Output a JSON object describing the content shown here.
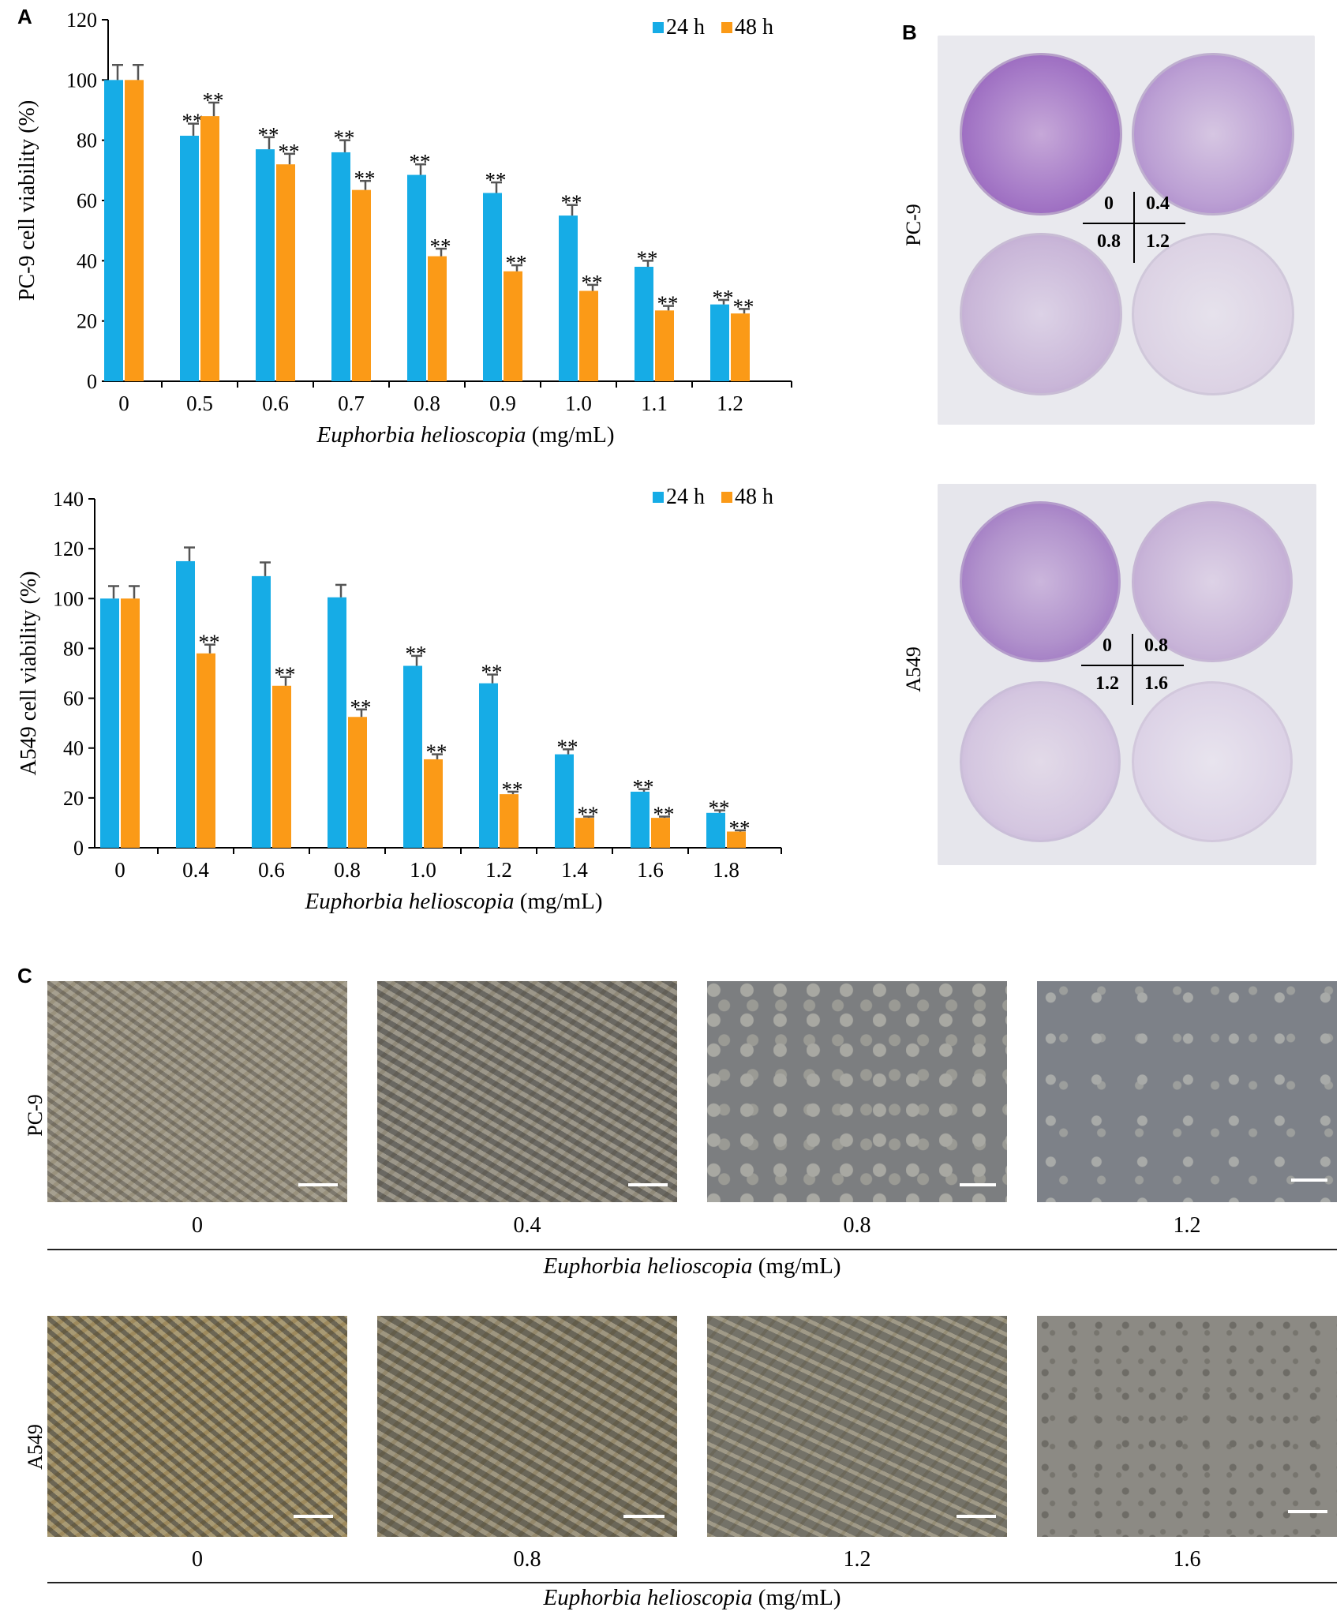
{
  "panels": {
    "a": "A",
    "b": "B",
    "c": "C"
  },
  "colors": {
    "h24": "#16ace6",
    "h48": "#fb9a17",
    "err": "#555555"
  },
  "chart_data": [
    {
      "type": "bar",
      "ylabel": "PC-9 cell viability (%)",
      "xlabel_italic": "Euphorbia helioscopia",
      "xlabel_unit": " (mg/mL)",
      "ylim": [
        0,
        120
      ],
      "yticks": [
        0,
        20,
        40,
        60,
        80,
        100,
        120
      ],
      "categories": [
        "0",
        "0.5",
        "0.6",
        "0.7",
        "0.8",
        "0.9",
        "1.0",
        "1.1",
        "1.2"
      ],
      "legend": {
        "placement": "top-right"
      },
      "series": [
        {
          "name": "24 h",
          "values": [
            100,
            81.5,
            77,
            76,
            68.5,
            62.5,
            55,
            38,
            25.5
          ],
          "err": [
            5,
            4,
            4,
            4,
            3.5,
            3.5,
            3.5,
            2,
            1.5
          ],
          "sig": [
            "",
            "**",
            "**",
            "**",
            "**",
            "**",
            "**",
            "**",
            "**"
          ]
        },
        {
          "name": "48 h",
          "values": [
            100,
            88,
            72,
            63.5,
            41.5,
            36.5,
            30,
            23.5,
            22.5
          ],
          "err": [
            5,
            4.5,
            3.5,
            3,
            2.5,
            2,
            2,
            1.5,
            1.5
          ],
          "sig": [
            "",
            "**",
            "**",
            "**",
            "**",
            "**",
            "**",
            "**",
            "**"
          ]
        }
      ]
    },
    {
      "type": "bar",
      "ylabel": "A549 cell viability (%)",
      "xlabel_italic": "Euphorbia helioscopia",
      "xlabel_unit": " (mg/mL)",
      "ylim": [
        0,
        140
      ],
      "yticks": [
        0,
        20,
        40,
        60,
        80,
        100,
        120,
        140
      ],
      "categories": [
        "0",
        "0.4",
        "0.6",
        "0.8",
        "1.0",
        "1.2",
        "1.4",
        "1.6",
        "1.8"
      ],
      "legend": {
        "placement": "top-right"
      },
      "series": [
        {
          "name": "24 h",
          "values": [
            100,
            115,
            109,
            100.5,
            73,
            66,
            37.5,
            22.5,
            14
          ],
          "err": [
            5,
            5.5,
            5.5,
            5,
            4,
            3.5,
            2,
            1,
            1
          ],
          "sig": [
            "",
            "",
            "",
            "",
            "**",
            "**",
            "**",
            "**",
            "**"
          ]
        },
        {
          "name": "48 h",
          "values": [
            100,
            78,
            65,
            52.5,
            35.5,
            21.5,
            12,
            12,
            6.5
          ],
          "err": [
            5,
            3.5,
            3.5,
            3,
            2,
            1,
            0.5,
            0.5,
            0.5
          ],
          "sig": [
            "",
            "**",
            "**",
            "**",
            "**",
            "**",
            "**",
            "**",
            "**"
          ]
        }
      ]
    }
  ],
  "panelB": {
    "pc9": {
      "label": "PC-9",
      "doses": [
        "0",
        "0.4",
        "0.8",
        "1.2"
      ]
    },
    "a549": {
      "label": "A549",
      "doses": [
        "0",
        "0.8",
        "1.2",
        "1.6"
      ]
    }
  },
  "panelC": {
    "pc9": {
      "label": "PC-9",
      "doses": [
        "0",
        "0.4",
        "0.8",
        "1.2"
      ]
    },
    "a549": {
      "label": "A549",
      "doses": [
        "0",
        "0.8",
        "1.2",
        "1.6"
      ]
    },
    "caption_italic": "Euphorbia helioscopia",
    "caption_unit": " (mg/mL)"
  }
}
